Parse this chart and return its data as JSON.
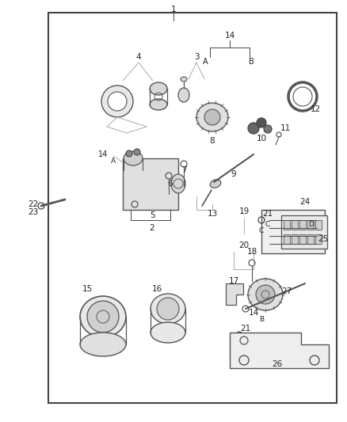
{
  "bg_color": "#ffffff",
  "line_color": "#aaaaaa",
  "dark_line": "#444444",
  "part_color": "#555555",
  "fig_width": 4.38,
  "fig_height": 5.33,
  "dpi": 100,
  "border": [
    0.14,
    0.03,
    0.97,
    0.955
  ]
}
